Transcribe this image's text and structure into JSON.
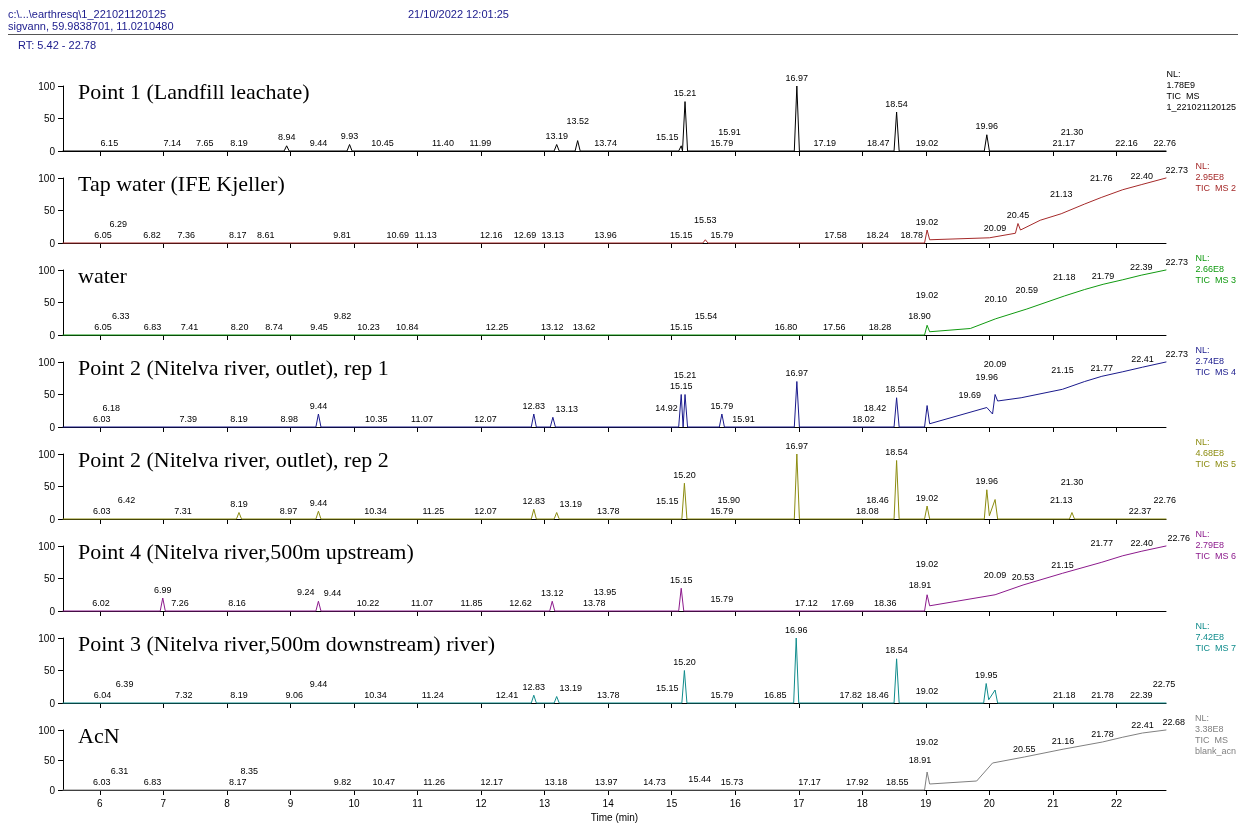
{
  "chart_data": [
    {
      "type": "other",
      "annotations": [
        "c:\\...\\earthresq\\1_221021120125",
        "21/10/2022 12:01:25",
        "sigvann, 59.9838701, 11.0210480",
        "RT: 5.42 - 22.78"
      ]
    },
    {
      "type": "line",
      "title": "Point 1 (Landfill leachate)",
      "color": "#000000",
      "xlim": [
        5.42,
        22.78
      ],
      "xticks": [
        6,
        7,
        8,
        9,
        10,
        11,
        12,
        13,
        14,
        15,
        16,
        17,
        18,
        19,
        20,
        21,
        22
      ],
      "ylim": [
        0,
        100
      ],
      "yticks": [
        0,
        50,
        100
      ],
      "tick_labels": "y",
      "x": [
        5.42,
        8.9,
        8.94,
        8.98,
        9.89,
        9.93,
        9.97,
        13.15,
        13.19,
        13.23,
        13.48,
        13.52,
        13.56,
        15.11,
        15.15,
        15.17,
        15.21,
        15.25,
        16.93,
        16.97,
        17.01,
        18.5,
        18.54,
        18.58,
        19.92,
        19.96,
        20.0,
        22.78
      ],
      "values": [
        0,
        0,
        8,
        0,
        0,
        10,
        0,
        0,
        10,
        0,
        0,
        16,
        0,
        0,
        8,
        0,
        76,
        0,
        0,
        100,
        0,
        0,
        60,
        0,
        0,
        25,
        0,
        0
      ],
      "annotations": [
        "NL:\n1.78E9\nTIC  MS\n1_221021120125",
        {
          "text": "6.15",
          "x": 6.15,
          "y": 0
        },
        {
          "text": "7.14",
          "x": 7.14,
          "y": 0
        },
        {
          "text": "7.65",
          "x": 7.65,
          "y": 0
        },
        {
          "text": "8.19",
          "x": 8.19,
          "y": 0
        },
        {
          "text": "8.94",
          "x": 8.94,
          "y": 8
        },
        {
          "text": "9.44",
          "x": 9.44,
          "y": 0
        },
        {
          "text": "9.93",
          "x": 9.93,
          "y": 10
        },
        {
          "text": "10.45",
          "x": 10.45,
          "y": 0
        },
        {
          "text": "11.40",
          "x": 11.4,
          "y": 0
        },
        {
          "text": "11.99",
          "x": 11.99,
          "y": 0
        },
        {
          "text": "13.19",
          "x": 13.19,
          "y": 10
        },
        {
          "text": "13.52",
          "x": 13.52,
          "y": 16
        },
        {
          "text": "13.74",
          "x": 13.74,
          "y": 0
        },
        {
          "text": "15.15",
          "x": 15.15,
          "y": 8
        },
        {
          "text": "15.21",
          "x": 15.21,
          "y": 76
        },
        {
          "text": "15.79",
          "x": 15.79,
          "y": 0
        },
        {
          "text": "15.91",
          "x": 15.91,
          "y": 0
        },
        {
          "text": "16.97",
          "x": 16.97,
          "y": 100
        },
        {
          "text": "17.19",
          "x": 17.19,
          "y": 0
        },
        {
          "text": "18.47",
          "x": 18.47,
          "y": 0
        },
        {
          "text": "18.54",
          "x": 18.54,
          "y": 60
        },
        {
          "text": "19.02",
          "x": 19.02,
          "y": 0
        },
        {
          "text": "19.96",
          "x": 19.96,
          "y": 25
        },
        {
          "text": "21.17",
          "x": 21.17,
          "y": 0
        },
        {
          "text": "21.30",
          "x": 21.3,
          "y": 0
        },
        {
          "text": "22.16",
          "x": 22.16,
          "y": 0
        },
        {
          "text": "22.76",
          "x": 22.76,
          "y": 0
        }
      ]
    },
    {
      "type": "line",
      "title": "Tap water (IFE Kjeller)",
      "color": "#a52a2a",
      "xlim": [
        5.42,
        22.78
      ],
      "xticks": [
        6,
        7,
        8,
        9,
        10,
        11,
        12,
        13,
        14,
        15,
        16,
        17,
        18,
        19,
        20,
        21,
        22
      ],
      "ylim": [
        0,
        100
      ],
      "yticks": [
        0,
        50,
        100
      ],
      "tick_labels": "y",
      "x": [
        5.42,
        15.49,
        15.53,
        15.57,
        18.98,
        19.02,
        19.06,
        20.0,
        20.41,
        20.45,
        20.49,
        20.8,
        21.13,
        21.5,
        21.76,
        22.1,
        22.4,
        22.78
      ],
      "values": [
        0,
        0,
        5,
        0,
        0,
        20,
        5,
        8,
        15,
        30,
        20,
        35,
        45,
        60,
        70,
        82,
        90,
        100
      ],
      "annotations": [
        "NL:\n2.95E8\nTIC  MS 2",
        {
          "text": "6.05",
          "x": 6.05,
          "y": 0
        },
        {
          "text": "6.29",
          "x": 6.29,
          "y": 0
        },
        {
          "text": "6.82",
          "x": 6.82,
          "y": 0
        },
        {
          "text": "7.36",
          "x": 7.36,
          "y": 0
        },
        {
          "text": "8.17",
          "x": 8.17,
          "y": 0
        },
        {
          "text": "8.61",
          "x": 8.61,
          "y": 0
        },
        {
          "text": "9.81",
          "x": 9.81,
          "y": 0
        },
        {
          "text": "10.69",
          "x": 10.69,
          "y": 0
        },
        {
          "text": "11.13",
          "x": 11.13,
          "y": 0
        },
        {
          "text": "12.16",
          "x": 12.16,
          "y": 0
        },
        {
          "text": "12.69",
          "x": 12.69,
          "y": 0
        },
        {
          "text": "13.13",
          "x": 13.13,
          "y": 0
        },
        {
          "text": "13.96",
          "x": 13.96,
          "y": 0
        },
        {
          "text": "15.15",
          "x": 15.15,
          "y": 0
        },
        {
          "text": "15.53",
          "x": 15.53,
          "y": 5
        },
        {
          "text": "15.79",
          "x": 15.79,
          "y": 0
        },
        {
          "text": "17.58",
          "x": 17.58,
          "y": 0
        },
        {
          "text": "18.24",
          "x": 18.24,
          "y": 0
        },
        {
          "text": "18.78",
          "x": 18.78,
          "y": 0
        },
        {
          "text": "19.02",
          "x": 19.02,
          "y": 20
        },
        {
          "text": "20.09",
          "x": 20.09,
          "y": 10
        },
        {
          "text": "20.45",
          "x": 20.45,
          "y": 30
        },
        {
          "text": "21.13",
          "x": 21.13,
          "y": 45
        },
        {
          "text": "21.76",
          "x": 21.76,
          "y": 70
        },
        {
          "text": "22.40",
          "x": 22.4,
          "y": 90
        },
        {
          "text": "22.73",
          "x": 22.73,
          "y": 99
        }
      ]
    },
    {
      "type": "line",
      "title": "water",
      "color": "#109a10",
      "xlim": [
        5.42,
        22.78
      ],
      "xticks": [
        6,
        7,
        8,
        9,
        10,
        11,
        12,
        13,
        14,
        15,
        16,
        17,
        18,
        19,
        20,
        21,
        22
      ],
      "ylim": [
        0,
        100
      ],
      "yticks": [
        0,
        50,
        100
      ],
      "tick_labels": "y",
      "x": [
        5.42,
        18.98,
        19.02,
        19.06,
        19.7,
        20.1,
        20.59,
        21.18,
        21.5,
        21.79,
        22.1,
        22.39,
        22.78
      ],
      "values": [
        0,
        0,
        15,
        5,
        10,
        25,
        40,
        60,
        70,
        78,
        85,
        92,
        100
      ],
      "annotations": [
        "NL:\n2.66E8\nTIC  MS 3",
        {
          "text": "6.05",
          "x": 6.05,
          "y": 0
        },
        {
          "text": "6.33",
          "x": 6.33,
          "y": 0
        },
        {
          "text": "6.83",
          "x": 6.83,
          "y": 0
        },
        {
          "text": "7.41",
          "x": 7.41,
          "y": 0
        },
        {
          "text": "8.20",
          "x": 8.2,
          "y": 0
        },
        {
          "text": "8.74",
          "x": 8.74,
          "y": 0
        },
        {
          "text": "9.45",
          "x": 9.45,
          "y": 0
        },
        {
          "text": "9.82",
          "x": 9.82,
          "y": 0
        },
        {
          "text": "10.23",
          "x": 10.23,
          "y": 0
        },
        {
          "text": "10.84",
          "x": 10.84,
          "y": 0
        },
        {
          "text": "12.25",
          "x": 12.25,
          "y": 0
        },
        {
          "text": "13.12",
          "x": 13.12,
          "y": 0
        },
        {
          "text": "13.62",
          "x": 13.62,
          "y": 0
        },
        {
          "text": "15.15",
          "x": 15.15,
          "y": 0
        },
        {
          "text": "15.54",
          "x": 15.54,
          "y": 0
        },
        {
          "text": "16.80",
          "x": 16.8,
          "y": 0
        },
        {
          "text": "17.56",
          "x": 17.56,
          "y": 0
        },
        {
          "text": "18.28",
          "x": 18.28,
          "y": 0
        },
        {
          "text": "18.90",
          "x": 18.9,
          "y": 0
        },
        {
          "text": "19.02",
          "x": 19.02,
          "y": 15
        },
        {
          "text": "20.10",
          "x": 20.1,
          "y": 25
        },
        {
          "text": "20.59",
          "x": 20.59,
          "y": 40
        },
        {
          "text": "21.18",
          "x": 21.18,
          "y": 60
        },
        {
          "text": "21.79",
          "x": 21.79,
          "y": 78
        },
        {
          "text": "22.39",
          "x": 22.39,
          "y": 92
        },
        {
          "text": "22.73",
          "x": 22.73,
          "y": 99
        }
      ]
    },
    {
      "type": "line",
      "title": "Point 2 (Nitelva river, outlet), rep 1",
      "color": "#1a1a8c",
      "xlim": [
        5.42,
        22.78
      ],
      "xticks": [
        6,
        7,
        8,
        9,
        10,
        11,
        12,
        13,
        14,
        15,
        16,
        17,
        18,
        19,
        20,
        21,
        22
      ],
      "ylim": [
        0,
        100
      ],
      "yticks": [
        0,
        50,
        100
      ],
      "tick_labels": "y",
      "x": [
        5.42,
        9.4,
        9.44,
        9.48,
        12.79,
        12.83,
        12.87,
        13.09,
        13.13,
        13.17,
        15.11,
        15.15,
        15.18,
        15.21,
        15.25,
        15.75,
        15.79,
        15.83,
        16.93,
        16.97,
        17.01,
        18.5,
        18.54,
        18.58,
        18.98,
        19.02,
        19.06,
        19.96,
        20.05,
        20.09,
        20.13,
        20.5,
        21.15,
        21.5,
        21.77,
        22.1,
        22.41,
        22.78
      ],
      "values": [
        0,
        0,
        20,
        0,
        0,
        20,
        0,
        0,
        15,
        0,
        0,
        50,
        0,
        50,
        0,
        0,
        20,
        0,
        0,
        70,
        0,
        0,
        45,
        0,
        0,
        33,
        5,
        30,
        20,
        50,
        40,
        45,
        58,
        70,
        78,
        85,
        92,
        100
      ],
      "annotations": [
        "NL:\n2.74E8\nTIC  MS 4",
        {
          "text": "6.03",
          "x": 6.03,
          "y": 0
        },
        {
          "text": "6.18",
          "x": 6.18,
          "y": 0
        },
        {
          "text": "7.39",
          "x": 7.39,
          "y": 0
        },
        {
          "text": "8.19",
          "x": 8.19,
          "y": 0
        },
        {
          "text": "8.98",
          "x": 8.98,
          "y": 0
        },
        {
          "text": "9.44",
          "x": 9.44,
          "y": 20
        },
        {
          "text": "10.35",
          "x": 10.35,
          "y": 0
        },
        {
          "text": "11.07",
          "x": 11.07,
          "y": 0
        },
        {
          "text": "12.07",
          "x": 12.07,
          "y": 0
        },
        {
          "text": "12.83",
          "x": 12.83,
          "y": 20
        },
        {
          "text": "13.13",
          "x": 13.13,
          "y": 15
        },
        {
          "text": "14.92",
          "x": 14.92,
          "y": 0
        },
        {
          "text": "15.15",
          "x": 15.15,
          "y": 50
        },
        {
          "text": "15.21",
          "x": 15.21,
          "y": 50
        },
        {
          "text": "15.79",
          "x": 15.79,
          "y": 20
        },
        {
          "text": "15.91",
          "x": 15.91,
          "y": 0
        },
        {
          "text": "16.97",
          "x": 16.97,
          "y": 70
        },
        {
          "text": "18.02",
          "x": 18.02,
          "y": 0
        },
        {
          "text": "18.42",
          "x": 18.42,
          "y": 0
        },
        {
          "text": "18.54",
          "x": 18.54,
          "y": 45
        },
        {
          "text": "19.69",
          "x": 19.69,
          "y": 20
        },
        {
          "text": "19.96",
          "x": 19.96,
          "y": 30
        },
        {
          "text": "20.09",
          "x": 20.09,
          "y": 50
        },
        {
          "text": "21.15",
          "x": 21.15,
          "y": 58
        },
        {
          "text": "21.77",
          "x": 21.77,
          "y": 78
        },
        {
          "text": "22.41",
          "x": 22.41,
          "y": 92
        },
        {
          "text": "22.73",
          "x": 22.73,
          "y": 99
        }
      ]
    },
    {
      "type": "line",
      "title": "Point 2 (Nitelva river, outlet), rep 2",
      "color": "#8c8c10",
      "xlim": [
        5.42,
        22.78
      ],
      "xticks": [
        6,
        7,
        8,
        9,
        10,
        11,
        12,
        13,
        14,
        15,
        16,
        17,
        18,
        19,
        20,
        21,
        22
      ],
      "ylim": [
        0,
        100
      ],
      "yticks": [
        0,
        50,
        100
      ],
      "tick_labels": "y",
      "x": [
        5.42,
        8.15,
        8.19,
        8.23,
        9.4,
        9.44,
        9.48,
        12.79,
        12.83,
        12.87,
        13.15,
        13.19,
        13.23,
        15.16,
        15.2,
        15.24,
        16.93,
        16.97,
        17.01,
        18.5,
        18.54,
        18.58,
        18.98,
        19.02,
        19.06,
        19.92,
        19.96,
        20.0,
        20.09,
        20.13,
        21.26,
        21.3,
        21.34,
        22.78
      ],
      "values": [
        0,
        0,
        10,
        0,
        0,
        12,
        0,
        0,
        15,
        0,
        0,
        10,
        0,
        0,
        55,
        0,
        0,
        100,
        0,
        0,
        90,
        0,
        0,
        20,
        0,
        0,
        45,
        5,
        30,
        0,
        0,
        10,
        0,
        0
      ],
      "annotations": [
        "NL:\n4.68E8\nTIC  MS 5",
        {
          "text": "6.03",
          "x": 6.03,
          "y": 0
        },
        {
          "text": "6.42",
          "x": 6.42,
          "y": 0
        },
        {
          "text": "7.31",
          "x": 7.31,
          "y": 0
        },
        {
          "text": "8.19",
          "x": 8.19,
          "y": 10
        },
        {
          "text": "8.97",
          "x": 8.97,
          "y": 0
        },
        {
          "text": "9.44",
          "x": 9.44,
          "y": 12
        },
        {
          "text": "10.34",
          "x": 10.34,
          "y": 0
        },
        {
          "text": "11.25",
          "x": 11.25,
          "y": 0
        },
        {
          "text": "12.07",
          "x": 12.07,
          "y": 0
        },
        {
          "text": "12.83",
          "x": 12.83,
          "y": 15
        },
        {
          "text": "13.19",
          "x": 13.19,
          "y": 10
        },
        {
          "text": "13.78",
          "x": 13.78,
          "y": 0
        },
        {
          "text": "15.15",
          "x": 15.15,
          "y": 15
        },
        {
          "text": "15.20",
          "x": 15.2,
          "y": 55
        },
        {
          "text": "15.79",
          "x": 15.79,
          "y": 0
        },
        {
          "text": "15.90",
          "x": 15.9,
          "y": 0
        },
        {
          "text": "16.97",
          "x": 16.97,
          "y": 100
        },
        {
          "text": "18.08",
          "x": 18.08,
          "y": 0
        },
        {
          "text": "18.46",
          "x": 18.46,
          "y": 0
        },
        {
          "text": "18.54",
          "x": 18.54,
          "y": 90
        },
        {
          "text": "19.02",
          "x": 19.02,
          "y": 20
        },
        {
          "text": "19.96",
          "x": 19.96,
          "y": 45
        },
        {
          "text": "21.13",
          "x": 21.13,
          "y": 0
        },
        {
          "text": "21.30",
          "x": 21.3,
          "y": 10
        },
        {
          "text": "22.37",
          "x": 22.37,
          "y": 0
        },
        {
          "text": "22.76",
          "x": 22.76,
          "y": 0
        }
      ]
    },
    {
      "type": "line",
      "title": "Point 4 (Nitelva river,500m upstream)",
      "color": "#8c1a8c",
      "xlim": [
        5.42,
        22.78
      ],
      "xticks": [
        6,
        7,
        8,
        9,
        10,
        11,
        12,
        13,
        14,
        15,
        16,
        17,
        18,
        19,
        20,
        21,
        22
      ],
      "ylim": [
        0,
        100
      ],
      "yticks": [
        0,
        50,
        100
      ],
      "tick_labels": "y",
      "x": [
        5.42,
        6.95,
        6.99,
        7.03,
        9.4,
        9.44,
        9.48,
        13.08,
        13.12,
        13.16,
        15.11,
        15.15,
        15.19,
        18.98,
        19.02,
        19.06,
        20.09,
        20.53,
        21.15,
        21.77,
        22.1,
        22.4,
        22.78
      ],
      "values": [
        0,
        0,
        20,
        0,
        0,
        15,
        0,
        0,
        15,
        0,
        0,
        35,
        0,
        0,
        25,
        8,
        25,
        40,
        58,
        75,
        85,
        92,
        100
      ],
      "annotations": [
        "NL:\n2.79E8\nTIC  MS 6",
        {
          "text": "6.02",
          "x": 6.02,
          "y": 0
        },
        {
          "text": "6.99",
          "x": 6.99,
          "y": 20
        },
        {
          "text": "7.26",
          "x": 7.26,
          "y": 0
        },
        {
          "text": "8.16",
          "x": 8.16,
          "y": 0
        },
        {
          "text": "9.24",
          "x": 9.24,
          "y": 0
        },
        {
          "text": "9.44",
          "x": 9.44,
          "y": 15
        },
        {
          "text": "10.22",
          "x": 10.22,
          "y": 0
        },
        {
          "text": "11.07",
          "x": 11.07,
          "y": 0
        },
        {
          "text": "11.85",
          "x": 11.85,
          "y": 0
        },
        {
          "text": "12.62",
          "x": 12.62,
          "y": 0
        },
        {
          "text": "13.12",
          "x": 13.12,
          "y": 15
        },
        {
          "text": "13.78",
          "x": 13.78,
          "y": 0
        },
        {
          "text": "13.95",
          "x": 13.95,
          "y": 0
        },
        {
          "text": "15.15",
          "x": 15.15,
          "y": 35
        },
        {
          "text": "15.79",
          "x": 15.79,
          "y": 5
        },
        {
          "text": "17.12",
          "x": 17.12,
          "y": 0
        },
        {
          "text": "17.69",
          "x": 17.69,
          "y": 0
        },
        {
          "text": "18.36",
          "x": 18.36,
          "y": 0
        },
        {
          "text": "18.91",
          "x": 18.91,
          "y": 10
        },
        {
          "text": "19.02",
          "x": 19.02,
          "y": 25
        },
        {
          "text": "20.09",
          "x": 20.09,
          "y": 25
        },
        {
          "text": "20.53",
          "x": 20.53,
          "y": 40
        },
        {
          "text": "21.15",
          "x": 21.15,
          "y": 58
        },
        {
          "text": "21.77",
          "x": 21.77,
          "y": 75
        },
        {
          "text": "22.40",
          "x": 22.4,
          "y": 92
        },
        {
          "text": "22.76",
          "x": 22.76,
          "y": 99
        }
      ]
    },
    {
      "type": "line",
      "title": "Point 3 (Nitelva river,500m downstream) river)",
      "color": "#108c8c",
      "xlim": [
        5.42,
        22.78
      ],
      "xticks": [
        6,
        7,
        8,
        9,
        10,
        11,
        12,
        13,
        14,
        15,
        16,
        17,
        18,
        19,
        20,
        21,
        22
      ],
      "ylim": [
        0,
        100
      ],
      "yticks": [
        0,
        50,
        100
      ],
      "tick_labels": "y",
      "x": [
        5.42,
        12.79,
        12.83,
        12.87,
        13.15,
        13.19,
        13.23,
        15.16,
        15.2,
        15.24,
        16.92,
        16.96,
        17.0,
        18.5,
        18.54,
        18.58,
        19.91,
        19.95,
        19.99,
        20.09,
        20.13,
        22.78
      ],
      "values": [
        0,
        0,
        12,
        0,
        0,
        10,
        0,
        0,
        50,
        0,
        0,
        100,
        0,
        0,
        68,
        0,
        0,
        30,
        5,
        20,
        0,
        0
      ],
      "annotations": [
        "NL:\n7.42E8\nTIC  MS 7",
        {
          "text": "6.04",
          "x": 6.04,
          "y": 0
        },
        {
          "text": "6.39",
          "x": 6.39,
          "y": 0
        },
        {
          "text": "7.32",
          "x": 7.32,
          "y": 0
        },
        {
          "text": "8.19",
          "x": 8.19,
          "y": 0
        },
        {
          "text": "9.06",
          "x": 9.06,
          "y": 0
        },
        {
          "text": "9.44",
          "x": 9.44,
          "y": 0
        },
        {
          "text": "10.34",
          "x": 10.34,
          "y": 0
        },
        {
          "text": "11.24",
          "x": 11.24,
          "y": 0
        },
        {
          "text": "12.41",
          "x": 12.41,
          "y": 0
        },
        {
          "text": "12.83",
          "x": 12.83,
          "y": 12
        },
        {
          "text": "13.19",
          "x": 13.19,
          "y": 10
        },
        {
          "text": "13.78",
          "x": 13.78,
          "y": 0
        },
        {
          "text": "15.15",
          "x": 15.15,
          "y": 10
        },
        {
          "text": "15.20",
          "x": 15.2,
          "y": 50
        },
        {
          "text": "15.79",
          "x": 15.79,
          "y": 0
        },
        {
          "text": "16.85",
          "x": 16.85,
          "y": 0
        },
        {
          "text": "16.96",
          "x": 16.96,
          "y": 100
        },
        {
          "text": "17.82",
          "x": 17.82,
          "y": 0
        },
        {
          "text": "18.46",
          "x": 18.46,
          "y": 0
        },
        {
          "text": "18.54",
          "x": 18.54,
          "y": 68
        },
        {
          "text": "19.02",
          "x": 19.02,
          "y": 5
        },
        {
          "text": "19.95",
          "x": 19.95,
          "y": 30
        },
        {
          "text": "21.18",
          "x": 21.18,
          "y": 0
        },
        {
          "text": "21.78",
          "x": 21.78,
          "y": 0
        },
        {
          "text": "22.39",
          "x": 22.39,
          "y": 0
        },
        {
          "text": "22.75",
          "x": 22.75,
          "y": 0
        }
      ]
    },
    {
      "type": "line",
      "title": "AcN",
      "color": "#808080",
      "xlabel": "Time (min)",
      "xlim": [
        5.42,
        22.78
      ],
      "xticks": [
        6,
        7,
        8,
        9,
        10,
        11,
        12,
        13,
        14,
        15,
        16,
        17,
        18,
        19,
        20,
        21,
        22
      ],
      "ylim": [
        0,
        100
      ],
      "yticks": [
        0,
        50,
        100
      ],
      "x": [
        5.42,
        18.98,
        19.02,
        19.06,
        19.8,
        20.05,
        20.55,
        21.16,
        21.78,
        22.1,
        22.41,
        22.78
      ],
      "values": [
        0,
        0,
        30,
        10,
        15,
        45,
        55,
        68,
        80,
        88,
        95,
        100
      ],
      "annotations": [
        "NL:\n3.38E8\nTIC  MS\nblank_acn",
        {
          "text": "6.03",
          "x": 6.03,
          "y": 0
        },
        {
          "text": "6.31",
          "x": 6.31,
          "y": 0
        },
        {
          "text": "6.83",
          "x": 6.83,
          "y": 0
        },
        {
          "text": "8.17",
          "x": 8.17,
          "y": 0
        },
        {
          "text": "8.35",
          "x": 8.35,
          "y": 0
        },
        {
          "text": "9.82",
          "x": 9.82,
          "y": 0
        },
        {
          "text": "10.47",
          "x": 10.47,
          "y": 0
        },
        {
          "text": "11.26",
          "x": 11.26,
          "y": 0
        },
        {
          "text": "12.17",
          "x": 12.17,
          "y": 0
        },
        {
          "text": "13.18",
          "x": 13.18,
          "y": 0
        },
        {
          "text": "13.97",
          "x": 13.97,
          "y": 0
        },
        {
          "text": "14.73",
          "x": 14.73,
          "y": 0
        },
        {
          "text": "15.44",
          "x": 15.44,
          "y": 5
        },
        {
          "text": "15.73",
          "x": 15.73,
          "y": 0
        },
        {
          "text": "17.17",
          "x": 17.17,
          "y": 0
        },
        {
          "text": "17.92",
          "x": 17.92,
          "y": 0
        },
        {
          "text": "18.55",
          "x": 18.55,
          "y": 0
        },
        {
          "text": "18.91",
          "x": 18.91,
          "y": 0
        },
        {
          "text": "19.02",
          "x": 19.02,
          "y": 30
        },
        {
          "text": "20.55",
          "x": 20.55,
          "y": 55
        },
        {
          "text": "21.16",
          "x": 21.16,
          "y": 68
        },
        {
          "text": "21.78",
          "x": 21.78,
          "y": 80
        },
        {
          "text": "22.41",
          "x": 22.41,
          "y": 95
        },
        {
          "text": "22.68",
          "x": 22.68,
          "y": 99
        }
      ]
    }
  ]
}
